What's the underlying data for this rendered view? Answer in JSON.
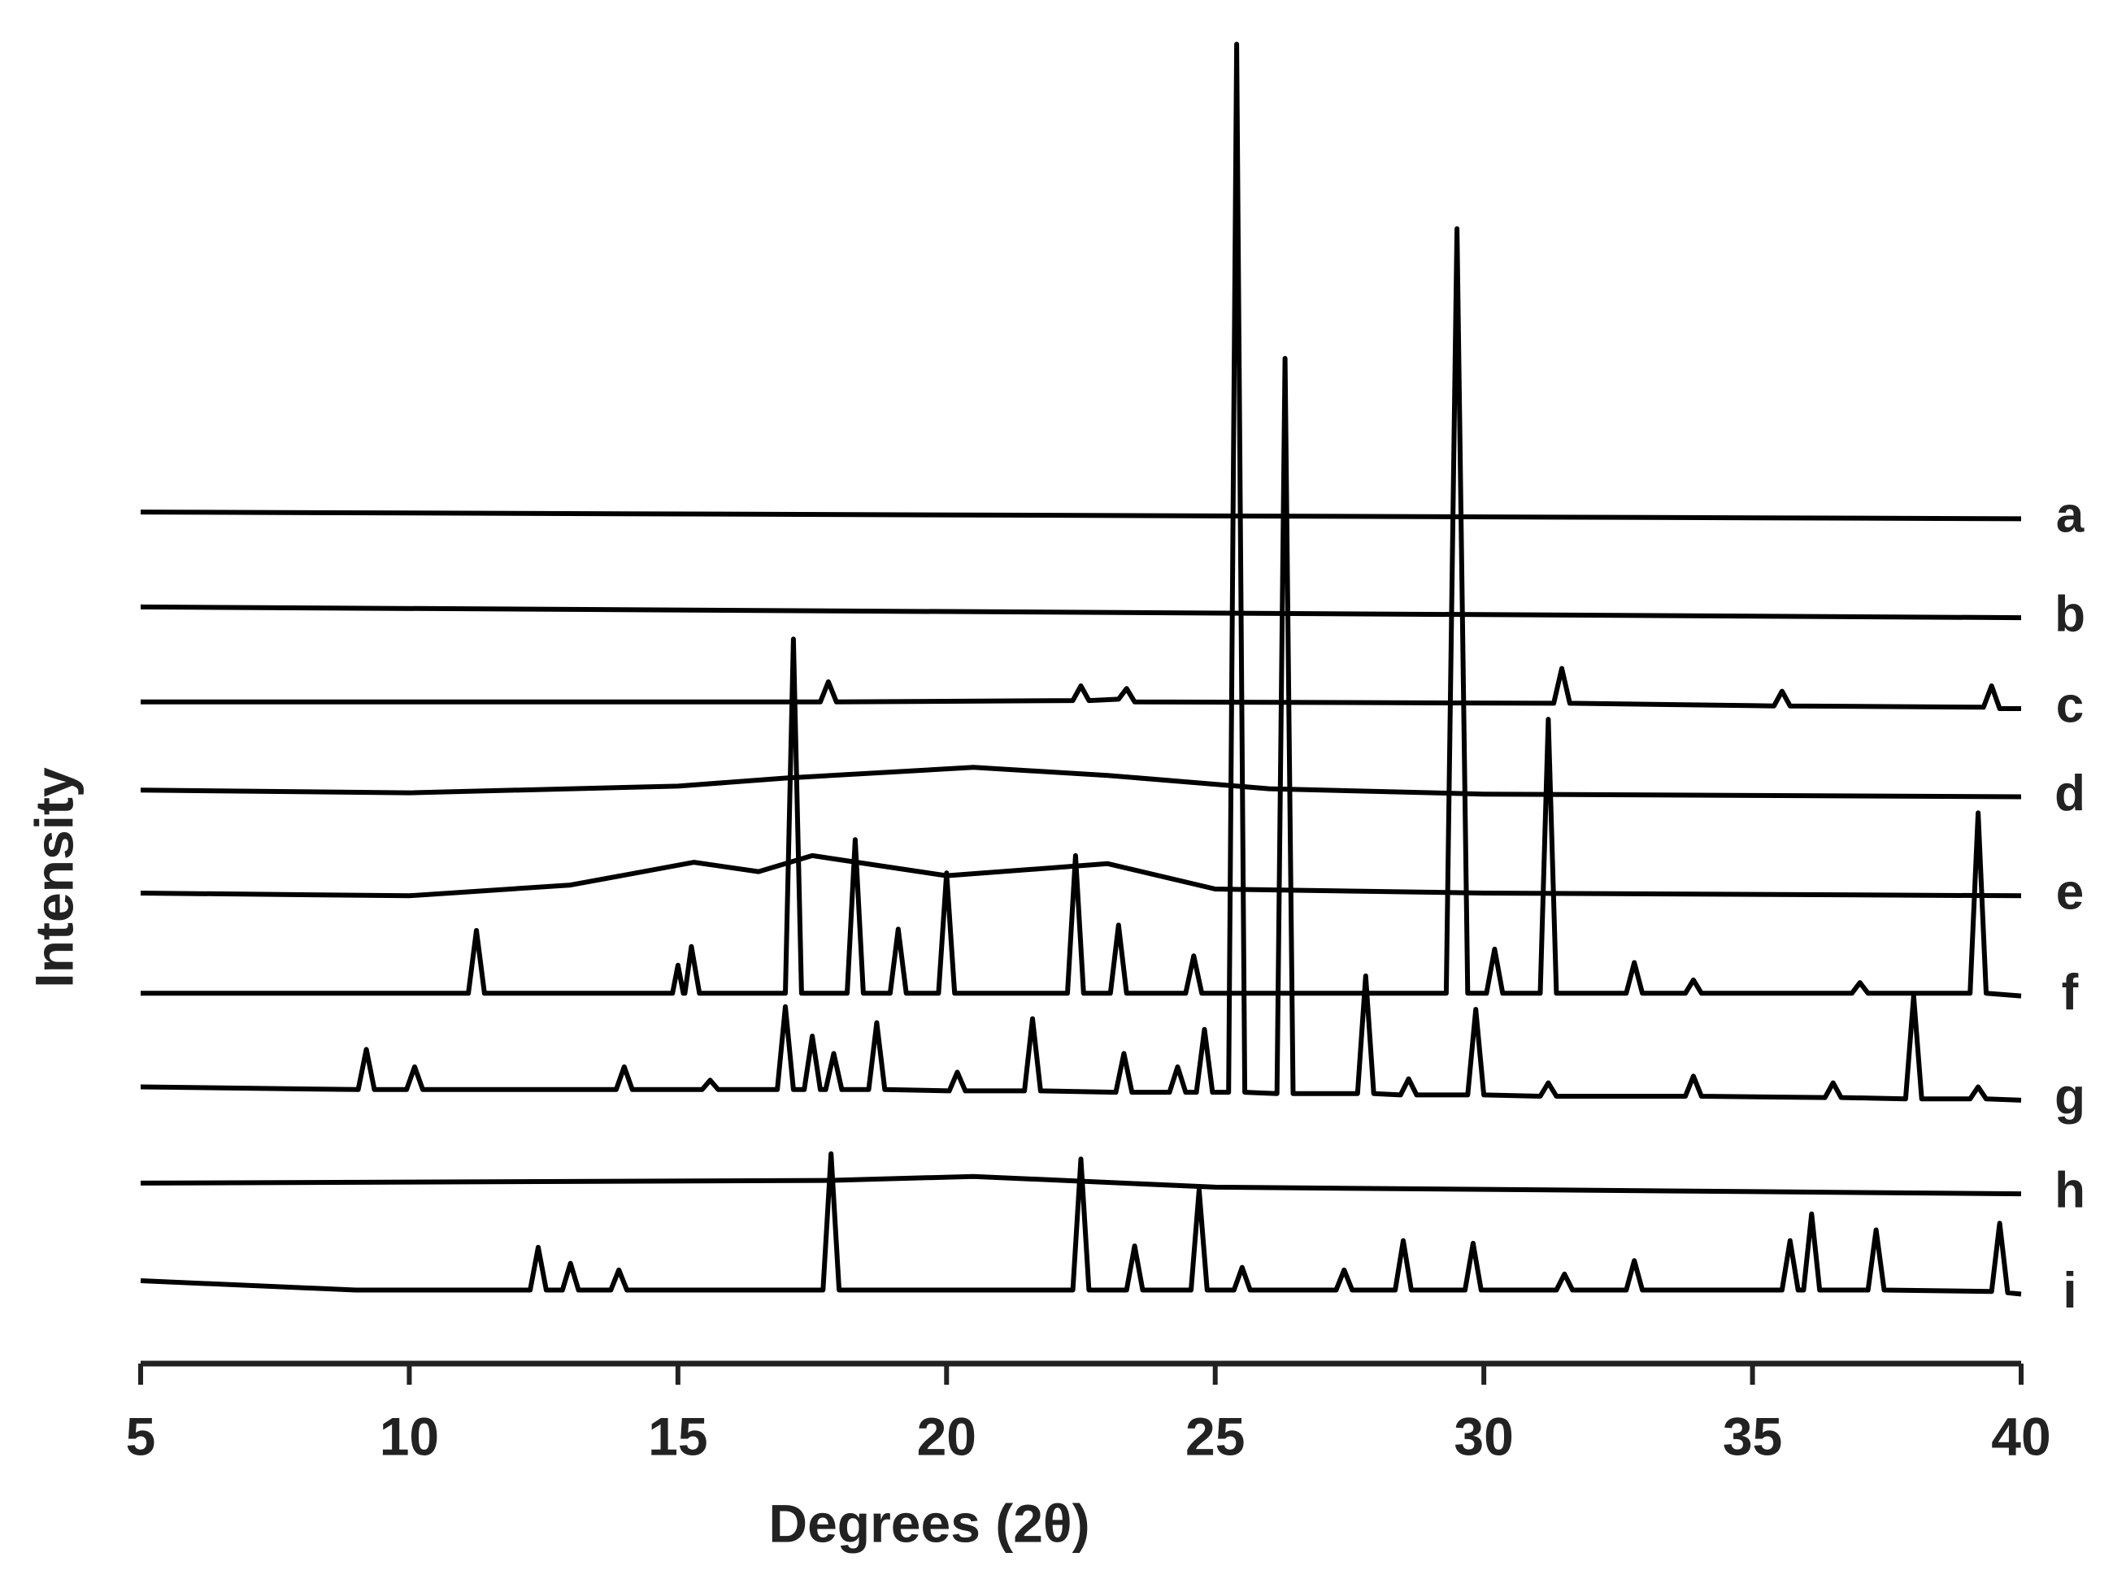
{
  "chart_data": {
    "type": "line",
    "xlabel": "Degrees (2θ)",
    "ylabel": "Intensity",
    "xlim": [
      5,
      40
    ],
    "xticks": [
      5,
      10,
      15,
      20,
      25,
      30,
      35,
      40
    ],
    "ylim": [
      0,
      1000
    ],
    "series": [
      {
        "name": "a",
        "color": "#000000",
        "x": [
          5,
          40
        ],
        "values": [
          637,
          632
        ]
      },
      {
        "name": "b",
        "color": "#000000",
        "x": [
          5,
          40
        ],
        "values": [
          566,
          558
        ]
      },
      {
        "name": "c",
        "color": "#000000",
        "x": [
          5,
          17.65,
          17.8,
          17.95,
          22.35,
          22.5,
          22.65,
          23.2,
          23.35,
          23.5,
          31.3,
          31.45,
          31.6,
          35.4,
          35.55,
          35.7,
          39.3,
          39.45,
          39.6,
          40
        ],
        "values": [
          495,
          495,
          510,
          495,
          496,
          507,
          496,
          497,
          505,
          495,
          494,
          520,
          494,
          492,
          503,
          492,
          491,
          507,
          490,
          490
        ]
      },
      {
        "name": "d",
        "color": "#000000",
        "x": [
          5,
          10,
          15,
          17,
          20.5,
          23,
          26,
          30,
          35,
          40
        ],
        "values": [
          429,
          427,
          432,
          438,
          446,
          440,
          430,
          426,
          425,
          424
        ]
      },
      {
        "name": "e",
        "color": "#000000",
        "x": [
          5,
          10,
          13,
          15.3,
          16.5,
          17.5,
          20,
          23,
          25,
          30,
          40
        ],
        "values": [
          352,
          350,
          358,
          375,
          368,
          380,
          365,
          374,
          355,
          352,
          350
        ]
      },
      {
        "name": "f",
        "color": "#000000",
        "x": [
          5,
          11.1,
          11.25,
          11.4,
          14.9,
          15.0,
          15.1,
          15.13,
          15.25,
          15.4,
          17.0,
          17.15,
          17.3,
          18.15,
          18.3,
          18.45,
          18.95,
          19.1,
          19.25,
          19.85,
          20.0,
          20.15,
          22.25,
          22.4,
          22.55,
          23.05,
          23.2,
          23.35,
          24.45,
          24.6,
          24.75,
          29.3,
          29.5,
          29.7,
          30.05,
          30.2,
          30.35,
          31.05,
          31.2,
          31.35,
          32.65,
          32.8,
          32.95,
          33.75,
          33.9,
          34.05,
          36.85,
          37.0,
          37.15,
          39.05,
          39.2,
          39.35,
          40
        ],
        "values": [
          277,
          277,
          324,
          277,
          277,
          298,
          277,
          277,
          312,
          277,
          277,
          542,
          277,
          277,
          392,
          277,
          277,
          325,
          277,
          277,
          367,
          277,
          277,
          380,
          277,
          277,
          328,
          277,
          277,
          305,
          277,
          277,
          849,
          277,
          277,
          310,
          277,
          277,
          482,
          277,
          277,
          300,
          277,
          277,
          287,
          277,
          277,
          285,
          277,
          277,
          412,
          277,
          275
        ]
      },
      {
        "name": "g",
        "color": "#000000",
        "x": [
          5,
          9.05,
          9.2,
          9.35,
          9.95,
          10.1,
          10.25,
          13.85,
          14.0,
          14.15,
          15.45,
          15.6,
          15.75,
          16.85,
          17.0,
          17.15,
          17.35,
          17.5,
          17.65,
          17.75,
          17.9,
          18.05,
          18.55,
          18.7,
          18.85,
          20.05,
          20.2,
          20.35,
          21.45,
          21.6,
          21.75,
          23.15,
          23.3,
          23.45,
          24.15,
          24.3,
          24.45,
          24.65,
          24.8,
          24.95,
          25.25,
          25.4,
          25.55,
          26.15,
          26.3,
          26.45,
          27.65,
          27.8,
          27.95,
          28.45,
          28.6,
          28.75,
          29.7,
          29.85,
          30.0,
          31.05,
          31.2,
          31.35,
          33.75,
          33.9,
          34.05,
          36.35,
          36.5,
          36.65,
          37.85,
          38.0,
          38.15,
          39.05,
          39.2,
          39.35,
          40
        ],
        "values": [
          207,
          205,
          235,
          205,
          205,
          222,
          205,
          205,
          222,
          205,
          205,
          212,
          205,
          205,
          267,
          205,
          205,
          245,
          205,
          205,
          232,
          205,
          205,
          255,
          205,
          204,
          218,
          204,
          204,
          258,
          204,
          203,
          232,
          203,
          203,
          222,
          203,
          203,
          250,
          203,
          203,
          987,
          203,
          202,
          752,
          202,
          202,
          290,
          202,
          201,
          213,
          201,
          201,
          265,
          201,
          200,
          210,
          200,
          200,
          215,
          200,
          199,
          210,
          199,
          198,
          275,
          198,
          198,
          207,
          198,
          197
        ]
      },
      {
        "name": "h",
        "color": "#000000",
        "x": [
          5,
          17.8,
          20.5,
          25,
          40
        ],
        "values": [
          135,
          137,
          140,
          132,
          127
        ]
      },
      {
        "name": "i",
        "color": "#000000",
        "x": [
          5,
          9,
          12.25,
          12.4,
          12.55,
          12.85,
          13.0,
          13.15,
          13.75,
          13.9,
          14.05,
          17.7,
          17.85,
          18.0,
          22.35,
          22.5,
          22.65,
          23.35,
          23.5,
          23.65,
          24.55,
          24.7,
          24.85,
          25.35,
          25.5,
          25.65,
          27.25,
          27.4,
          27.55,
          28.35,
          28.5,
          28.65,
          29.65,
          29.8,
          29.95,
          31.35,
          31.5,
          31.65,
          32.65,
          32.8,
          32.95,
          35.55,
          35.7,
          35.85,
          35.95,
          36.1,
          36.25,
          37.15,
          37.3,
          37.45,
          39.45,
          39.6,
          39.75,
          40
        ],
        "values": [
          62,
          55,
          55,
          87,
          55,
          55,
          75,
          55,
          55,
          70,
          55,
          55,
          157,
          55,
          55,
          153,
          55,
          55,
          88,
          55,
          55,
          130,
          55,
          55,
          72,
          55,
          55,
          70,
          55,
          55,
          92,
          55,
          55,
          90,
          55,
          55,
          67,
          55,
          55,
          77,
          55,
          55,
          92,
          55,
          55,
          112,
          55,
          55,
          100,
          55,
          54,
          105,
          53,
          52
        ]
      }
    ]
  }
}
